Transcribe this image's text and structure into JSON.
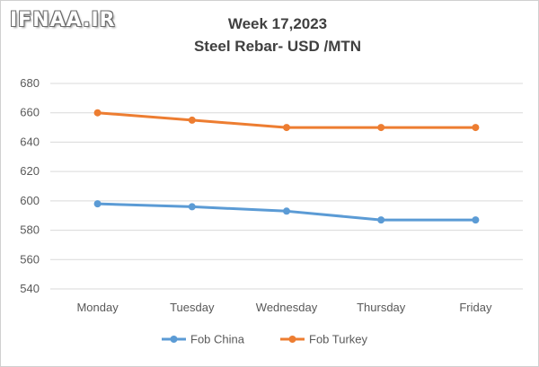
{
  "logo": "IFNAA.IR",
  "chart_data": {
    "type": "line",
    "title": "Week 17,2023",
    "subtitle": "Steel Rebar- USD /MTN",
    "categories": [
      "Monday",
      "Tuesday",
      "Wednesday",
      "Thursday",
      "Friday"
    ],
    "series": [
      {
        "name": "Fob China",
        "color": "#5b9bd5",
        "values": [
          598,
          596,
          593,
          587,
          587
        ]
      },
      {
        "name": "Fob Turkey",
        "color": "#ed7d31",
        "values": [
          660,
          655,
          650,
          650,
          650
        ]
      }
    ],
    "ylim": [
      540,
      680
    ],
    "yticks": [
      540,
      560,
      580,
      600,
      620,
      640,
      660,
      680
    ],
    "grid": true,
    "legend": "bottom"
  }
}
